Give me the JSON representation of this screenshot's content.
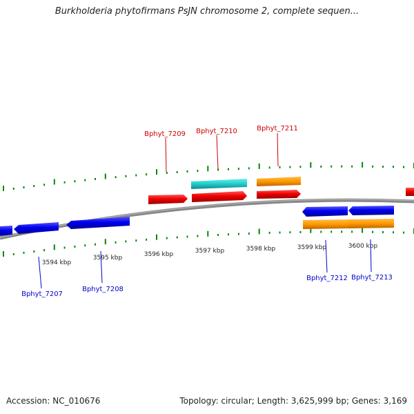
{
  "title": "Burkholderia phytofirmans PsJN chromosome 2, complete sequen...",
  "footer": {
    "accession": "Accession: NC_010676",
    "topology": "Topology: circular; Length: 3,625,999 bp; Genes: 3,169"
  },
  "colors": {
    "forward_gene": "#ee0000",
    "reverse_gene": "#0000ee",
    "cds_teal": "#22cccc",
    "cds_orange": "#ff9900",
    "backbone": "#888888",
    "tick": "#008800",
    "forward_label": "#cc0000",
    "reverse_label": "#0000cc"
  },
  "scale_ticks": [
    {
      "label": "3594 kbp"
    },
    {
      "label": "3595 kbp"
    },
    {
      "label": "3596 kbp"
    },
    {
      "label": "3597 kbp"
    },
    {
      "label": "3598 kbp"
    },
    {
      "label": "3599 kbp"
    },
    {
      "label": "3600 kbp"
    }
  ],
  "genes_forward": [
    {
      "label": "Bphyt_7209"
    },
    {
      "label": "Bphyt_7210"
    },
    {
      "label": "Bphyt_7211"
    }
  ],
  "genes_reverse": [
    {
      "label": "Bphyt_7207"
    },
    {
      "label": "Bphyt_7208"
    },
    {
      "label": "Bphyt_7212"
    },
    {
      "label": "Bphyt_7213"
    }
  ]
}
